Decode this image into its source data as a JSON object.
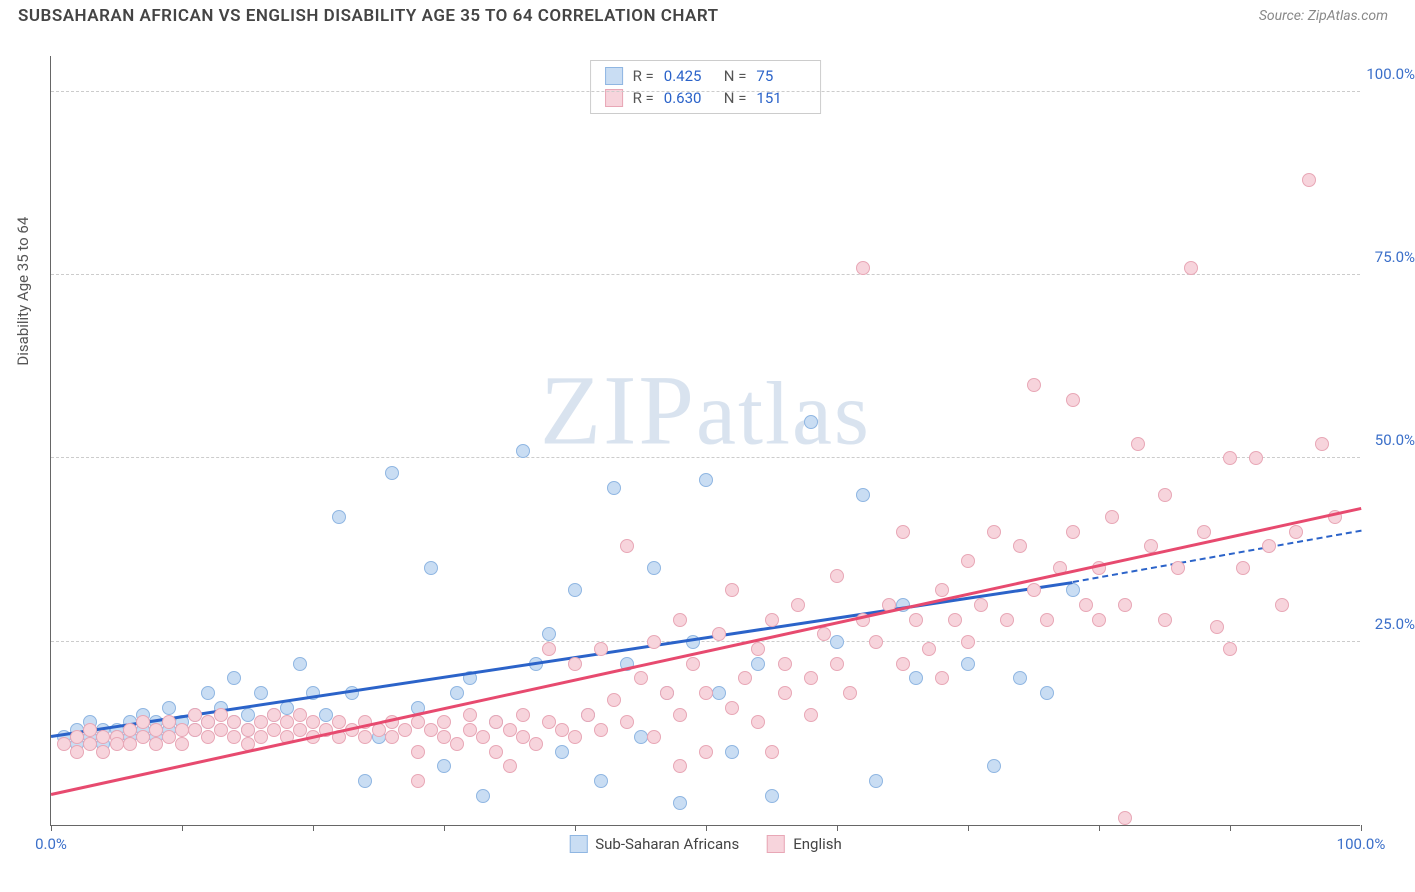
{
  "title": "SUBSAHARAN AFRICAN VS ENGLISH DISABILITY AGE 35 TO 64 CORRELATION CHART",
  "source": "Source: ZipAtlas.com",
  "y_axis_title": "Disability Age 35 to 64",
  "watermark_a": "ZIP",
  "watermark_b": "atlas",
  "chart": {
    "xlim": [
      0,
      100
    ],
    "ylim": [
      0,
      105
    ],
    "x_ticks": [
      0,
      10,
      20,
      30,
      40,
      50,
      60,
      70,
      80,
      90,
      100
    ],
    "x_tick_labels": {
      "0": "0.0%",
      "100": "100.0%"
    },
    "y_gridlines": [
      25,
      50,
      75,
      100
    ],
    "y_tick_labels": {
      "25": "25.0%",
      "50": "50.0%",
      "75": "75.0%",
      "100": "100.0%"
    },
    "series": [
      {
        "name": "Sub-Saharan Africans",
        "fill": "#c9ddf3",
        "stroke": "#8fb6e2",
        "line_color": "#2b63c9",
        "r_label": "R =",
        "r_value": "0.425",
        "n_label": "N =",
        "n_value": "75",
        "trend": {
          "x1": 0,
          "y1": 12,
          "x2": 78,
          "y2": 33,
          "dash_to_x": 100,
          "dash_to_y": 40
        },
        "points": [
          [
            1,
            12
          ],
          [
            2,
            13
          ],
          [
            2,
            11
          ],
          [
            3,
            12
          ],
          [
            3,
            14
          ],
          [
            4,
            13
          ],
          [
            4,
            11
          ],
          [
            5,
            13
          ],
          [
            5,
            12
          ],
          [
            6,
            12
          ],
          [
            6,
            14
          ],
          [
            7,
            13
          ],
          [
            7,
            15
          ],
          [
            8,
            12
          ],
          [
            8,
            14
          ],
          [
            9,
            16
          ],
          [
            9,
            13
          ],
          [
            10,
            14
          ],
          [
            11,
            13
          ],
          [
            11,
            15
          ],
          [
            12,
            18
          ],
          [
            12,
            14
          ],
          [
            13,
            16
          ],
          [
            14,
            14
          ],
          [
            14,
            20
          ],
          [
            15,
            15
          ],
          [
            15,
            13
          ],
          [
            16,
            18
          ],
          [
            17,
            15
          ],
          [
            18,
            16
          ],
          [
            19,
            22
          ],
          [
            20,
            18
          ],
          [
            21,
            15
          ],
          [
            22,
            42
          ],
          [
            23,
            18
          ],
          [
            24,
            6
          ],
          [
            25,
            12
          ],
          [
            26,
            48
          ],
          [
            28,
            16
          ],
          [
            29,
            35
          ],
          [
            30,
            8
          ],
          [
            31,
            18
          ],
          [
            32,
            20
          ],
          [
            33,
            4
          ],
          [
            34,
            14
          ],
          [
            36,
            51
          ],
          [
            37,
            22
          ],
          [
            38,
            26
          ],
          [
            39,
            10
          ],
          [
            40,
            32
          ],
          [
            41,
            15
          ],
          [
            42,
            6
          ],
          [
            43,
            46
          ],
          [
            44,
            22
          ],
          [
            45,
            12
          ],
          [
            46,
            35
          ],
          [
            47,
            18
          ],
          [
            48,
            3
          ],
          [
            49,
            25
          ],
          [
            50,
            47
          ],
          [
            51,
            18
          ],
          [
            52,
            10
          ],
          [
            54,
            22
          ],
          [
            55,
            4
          ],
          [
            58,
            55
          ],
          [
            60,
            25
          ],
          [
            62,
            45
          ],
          [
            63,
            6
          ],
          [
            65,
            30
          ],
          [
            66,
            20
          ],
          [
            70,
            22
          ],
          [
            72,
            8
          ],
          [
            74,
            20
          ],
          [
            76,
            18
          ],
          [
            78,
            32
          ]
        ]
      },
      {
        "name": "English",
        "fill": "#f7d4dc",
        "stroke": "#e8a7b6",
        "line_color": "#e74a6f",
        "r_label": "R =",
        "r_value": "0.630",
        "n_label": "N =",
        "n_value": "151",
        "trend": {
          "x1": 0,
          "y1": 4,
          "x2": 100,
          "y2": 43
        },
        "points": [
          [
            1,
            11
          ],
          [
            2,
            12
          ],
          [
            2,
            10
          ],
          [
            3,
            11
          ],
          [
            3,
            13
          ],
          [
            4,
            12
          ],
          [
            4,
            10
          ],
          [
            5,
            12
          ],
          [
            5,
            11
          ],
          [
            6,
            11
          ],
          [
            6,
            13
          ],
          [
            7,
            12
          ],
          [
            7,
            14
          ],
          [
            8,
            11
          ],
          [
            8,
            13
          ],
          [
            9,
            14
          ],
          [
            9,
            12
          ],
          [
            10,
            13
          ],
          [
            10,
            11
          ],
          [
            11,
            13
          ],
          [
            11,
            15
          ],
          [
            12,
            12
          ],
          [
            12,
            14
          ],
          [
            13,
            13
          ],
          [
            13,
            15
          ],
          [
            14,
            12
          ],
          [
            14,
            14
          ],
          [
            15,
            13
          ],
          [
            15,
            11
          ],
          [
            16,
            14
          ],
          [
            16,
            12
          ],
          [
            17,
            13
          ],
          [
            17,
            15
          ],
          [
            18,
            12
          ],
          [
            18,
            14
          ],
          [
            19,
            13
          ],
          [
            19,
            15
          ],
          [
            20,
            12
          ],
          [
            20,
            14
          ],
          [
            21,
            13
          ],
          [
            22,
            14
          ],
          [
            22,
            12
          ],
          [
            23,
            13
          ],
          [
            24,
            12
          ],
          [
            24,
            14
          ],
          [
            25,
            13
          ],
          [
            26,
            12
          ],
          [
            26,
            14
          ],
          [
            27,
            13
          ],
          [
            28,
            14
          ],
          [
            28,
            10
          ],
          [
            29,
            13
          ],
          [
            30,
            12
          ],
          [
            30,
            14
          ],
          [
            31,
            11
          ],
          [
            32,
            13
          ],
          [
            32,
            15
          ],
          [
            33,
            12
          ],
          [
            34,
            14
          ],
          [
            34,
            10
          ],
          [
            35,
            13
          ],
          [
            36,
            12
          ],
          [
            36,
            15
          ],
          [
            37,
            11
          ],
          [
            38,
            14
          ],
          [
            38,
            24
          ],
          [
            39,
            13
          ],
          [
            40,
            12
          ],
          [
            40,
            22
          ],
          [
            41,
            15
          ],
          [
            42,
            24
          ],
          [
            42,
            13
          ],
          [
            43,
            17
          ],
          [
            44,
            38
          ],
          [
            44,
            14
          ],
          [
            45,
            20
          ],
          [
            46,
            12
          ],
          [
            46,
            25
          ],
          [
            47,
            18
          ],
          [
            48,
            15
          ],
          [
            48,
            28
          ],
          [
            49,
            22
          ],
          [
            50,
            10
          ],
          [
            50,
            18
          ],
          [
            51,
            26
          ],
          [
            52,
            16
          ],
          [
            52,
            32
          ],
          [
            53,
            20
          ],
          [
            54,
            14
          ],
          [
            54,
            24
          ],
          [
            55,
            28
          ],
          [
            56,
            18
          ],
          [
            56,
            22
          ],
          [
            57,
            30
          ],
          [
            58,
            20
          ],
          [
            58,
            15
          ],
          [
            59,
            26
          ],
          [
            60,
            22
          ],
          [
            60,
            34
          ],
          [
            61,
            18
          ],
          [
            62,
            28
          ],
          [
            62,
            76
          ],
          [
            63,
            25
          ],
          [
            64,
            30
          ],
          [
            65,
            22
          ],
          [
            65,
            40
          ],
          [
            66,
            28
          ],
          [
            67,
            24
          ],
          [
            68,
            32
          ],
          [
            68,
            20
          ],
          [
            69,
            28
          ],
          [
            70,
            36
          ],
          [
            70,
            25
          ],
          [
            71,
            30
          ],
          [
            72,
            40
          ],
          [
            73,
            28
          ],
          [
            74,
            38
          ],
          [
            75,
            32
          ],
          [
            75,
            60
          ],
          [
            76,
            28
          ],
          [
            77,
            35
          ],
          [
            78,
            40
          ],
          [
            78,
            58
          ],
          [
            79,
            30
          ],
          [
            80,
            35
          ],
          [
            80,
            28
          ],
          [
            81,
            42
          ],
          [
            82,
            30
          ],
          [
            83,
            52
          ],
          [
            84,
            38
          ],
          [
            85,
            28
          ],
          [
            85,
            45
          ],
          [
            86,
            35
          ],
          [
            87,
            76
          ],
          [
            88,
            40
          ],
          [
            89,
            27
          ],
          [
            90,
            50
          ],
          [
            90,
            24
          ],
          [
            91,
            35
          ],
          [
            92,
            50
          ],
          [
            93,
            38
          ],
          [
            94,
            30
          ],
          [
            95,
            40
          ],
          [
            96,
            88
          ],
          [
            97,
            52
          ],
          [
            98,
            42
          ],
          [
            82,
            1
          ],
          [
            28,
            6
          ],
          [
            35,
            8
          ],
          [
            48,
            8
          ],
          [
            55,
            10
          ]
        ]
      }
    ]
  }
}
